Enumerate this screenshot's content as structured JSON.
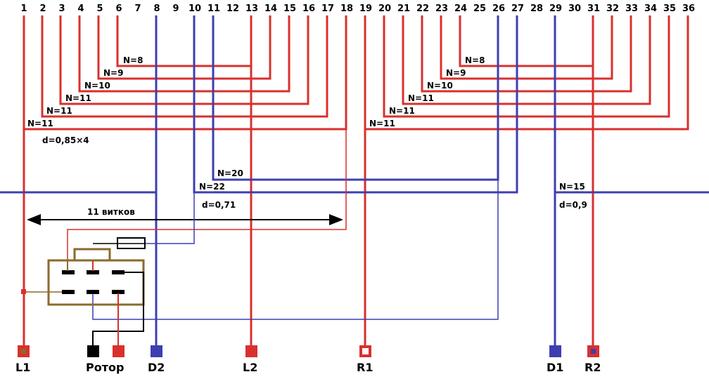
{
  "slots": [
    "1",
    "2",
    "3",
    "4",
    "5",
    "6",
    "7",
    "8",
    "9",
    "10",
    "11",
    "12",
    "13",
    "14",
    "15",
    "16",
    "17",
    "18",
    "19",
    "20",
    "21",
    "22",
    "23",
    "24",
    "25",
    "26",
    "27",
    "28",
    "29",
    "30",
    "31",
    "32",
    "33",
    "34",
    "35",
    "36"
  ],
  "colors": {
    "red": "#d9302e",
    "blue": "#3d3fb0",
    "brown": "#8b6a2b",
    "black": "#000000",
    "term_red": "#d9302e",
    "term_blue": "#3d3fb0"
  },
  "coils_left": [
    {
      "label": "N=8",
      "from": "6",
      "to": "13"
    },
    {
      "label": "N=9",
      "from": "5",
      "to": "14"
    },
    {
      "label": "N=10",
      "from": "4",
      "to": "15"
    },
    {
      "label": "N=11",
      "from": "3",
      "to": "16"
    },
    {
      "label": "N=11",
      "from": "2",
      "to": "17"
    },
    {
      "label": "N=11",
      "from": "1",
      "to": "18"
    }
  ],
  "coils_right": [
    {
      "label": "N=8",
      "from": "24",
      "to": "31"
    },
    {
      "label": "N=9",
      "from": "23",
      "to": "32"
    },
    {
      "label": "N=10",
      "from": "22",
      "to": "33"
    },
    {
      "label": "N=11",
      "from": "21",
      "to": "34"
    },
    {
      "label": "N=11",
      "from": "20",
      "to": "35"
    },
    {
      "label": "N=11",
      "from": "19",
      "to": "36"
    }
  ],
  "coils_blue": [
    {
      "label": "N=20",
      "from": "11",
      "to": "26"
    },
    {
      "label": "N=22",
      "from": "10",
      "to": "27"
    },
    {
      "label": "N=15",
      "from": "29",
      "to": ""
    }
  ],
  "wire_labels": {
    "main": "d=0,85×4",
    "blue_mid": "d=0,71",
    "blue_right": "d=0,9"
  },
  "turns_label": "11 витков",
  "terminals": [
    {
      "id": "L1",
      "label": "L1"
    },
    {
      "id": "rotor",
      "label": "Ротор"
    },
    {
      "id": "D2",
      "label": "D2"
    },
    {
      "id": "L2",
      "label": "L2"
    },
    {
      "id": "R1",
      "label": "R1"
    },
    {
      "id": "D1",
      "label": "D1"
    },
    {
      "id": "R2",
      "label": "R2"
    }
  ]
}
